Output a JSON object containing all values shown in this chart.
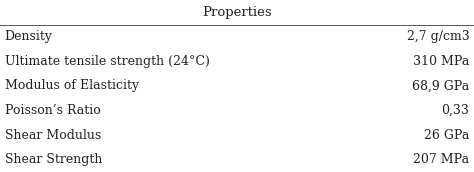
{
  "title": "Properties",
  "rows": [
    [
      "Density",
      "2,7 g/cm3"
    ],
    [
      "Ultimate tensile strength (24°C)",
      "310 MPa"
    ],
    [
      "Modulus of Elasticity",
      "68,9 GPa"
    ],
    [
      "Poisson’s Ratio",
      "0,33"
    ],
    [
      "Shear Modulus",
      "26 GPa"
    ],
    [
      "Shear Strength",
      "207 MPa"
    ]
  ],
  "background_color": "#ffffff",
  "text_color": "#222222",
  "header_fontsize": 9.5,
  "body_fontsize": 9.0,
  "line_color": "#555555"
}
